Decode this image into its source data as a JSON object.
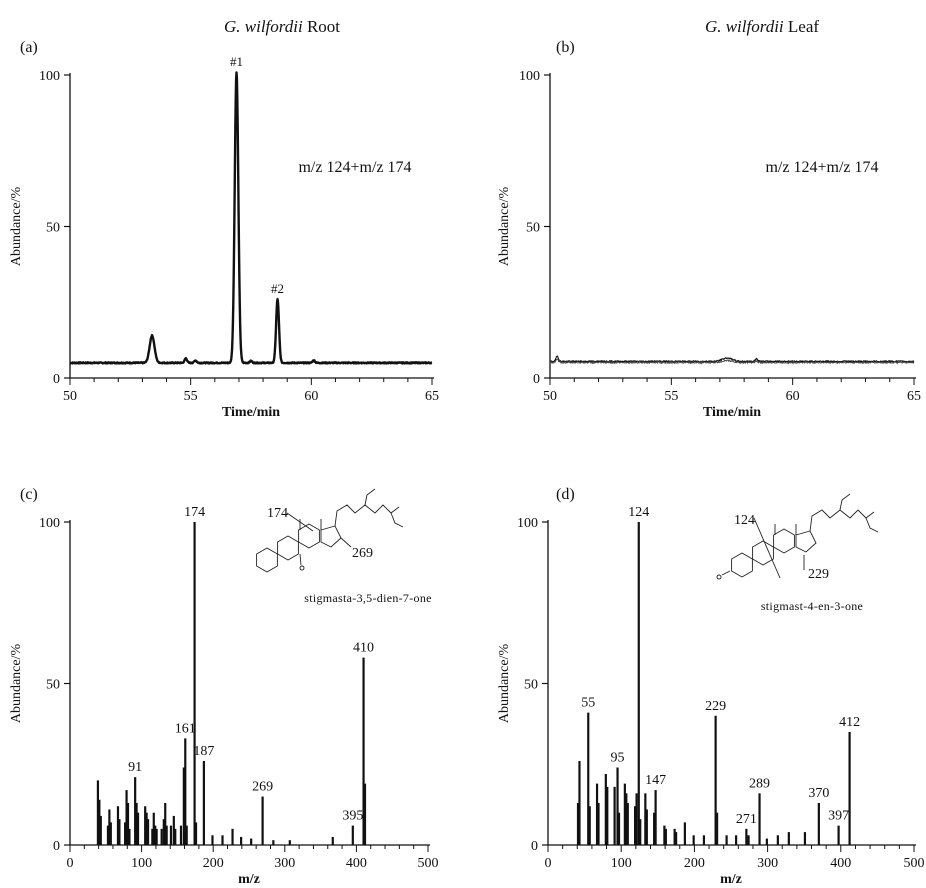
{
  "chart_data": [
    {
      "id": "a",
      "type": "line",
      "panel_label": "(a)",
      "title_italic": "G. wilfordii",
      "title_rest": " Root",
      "xlabel": "Time/min",
      "ylabel": "Abundance/%",
      "xlim": [
        50,
        65
      ],
      "ylim": [
        0,
        100
      ],
      "xticks": [
        50,
        55,
        60,
        65
      ],
      "yticks": [
        0,
        50,
        100
      ],
      "baseline": 5,
      "annotation": "m/z 124+m/z 174",
      "peaks": [
        {
          "x": 53.4,
          "y": 14,
          "w": 0.1
        },
        {
          "x": 54.8,
          "y": 6.5,
          "w": 0.05
        },
        {
          "x": 55.2,
          "y": 5.8,
          "w": 0.05
        },
        {
          "x": 56.9,
          "y": 101,
          "w": 0.075
        },
        {
          "x": 57.5,
          "y": 5.6,
          "w": 0.05
        },
        {
          "x": 58.6,
          "y": 26,
          "w": 0.06
        },
        {
          "x": 60.1,
          "y": 5.8,
          "w": 0.05
        }
      ],
      "peak_labels": [
        {
          "text": "#1",
          "x": 56.9,
          "y": 101
        },
        {
          "text": "#2",
          "x": 58.6,
          "y": 26
        }
      ],
      "series": [
        {
          "style": "bold",
          "noise": 0.35
        }
      ]
    },
    {
      "id": "b",
      "type": "line",
      "panel_label": "(b)",
      "title_italic": "G. wilfordii",
      "title_rest": " Leaf",
      "xlabel": "Time/min",
      "ylabel": "Abundance/%",
      "xlim": [
        50,
        65
      ],
      "ylim": [
        0,
        100
      ],
      "xticks": [
        50,
        55,
        60,
        65
      ],
      "yticks": [
        0,
        50,
        100
      ],
      "baseline": 5.5,
      "annotation": "m/z 124+m/z 174",
      "peaks": [
        {
          "x": 50.3,
          "y": 7.2,
          "w": 0.05
        },
        {
          "x": 57.3,
          "y": 6.6,
          "w": 0.2
        },
        {
          "x": 58.5,
          "y": 6.3,
          "w": 0.05
        }
      ],
      "peak_labels": [],
      "series": [
        {
          "style": "thin",
          "noise": 0.45
        }
      ]
    },
    {
      "id": "c",
      "type": "bar",
      "panel_label": "(c)",
      "xlabel": "m/z",
      "ylabel": "Abundance/%",
      "xlim": [
        0,
        500
      ],
      "ylim": [
        0,
        100
      ],
      "xticks": [
        0,
        100,
        200,
        300,
        400,
        500
      ],
      "yticks": [
        0,
        50,
        100
      ],
      "compound": "stigmasta-3,5-dien-7-one",
      "fragments": [
        "174",
        "269"
      ],
      "bars": [
        {
          "x": 39,
          "y": 20
        },
        {
          "x": 41,
          "y": 14
        },
        {
          "x": 43,
          "y": 9
        },
        {
          "x": 53,
          "y": 6
        },
        {
          "x": 55,
          "y": 11
        },
        {
          "x": 57,
          "y": 7
        },
        {
          "x": 67,
          "y": 12
        },
        {
          "x": 69,
          "y": 8
        },
        {
          "x": 77,
          "y": 7
        },
        {
          "x": 79,
          "y": 17
        },
        {
          "x": 81,
          "y": 13
        },
        {
          "x": 83,
          "y": 5
        },
        {
          "x": 91,
          "y": 21
        },
        {
          "x": 93,
          "y": 13
        },
        {
          "x": 95,
          "y": 10
        },
        {
          "x": 105,
          "y": 12
        },
        {
          "x": 107,
          "y": 10
        },
        {
          "x": 109,
          "y": 8
        },
        {
          "x": 115,
          "y": 5
        },
        {
          "x": 117,
          "y": 10
        },
        {
          "x": 119,
          "y": 6
        },
        {
          "x": 121,
          "y": 5
        },
        {
          "x": 128,
          "y": 5
        },
        {
          "x": 131,
          "y": 8
        },
        {
          "x": 133,
          "y": 13
        },
        {
          "x": 135,
          "y": 6
        },
        {
          "x": 141,
          "y": 6
        },
        {
          "x": 145,
          "y": 9
        },
        {
          "x": 147,
          "y": 5
        },
        {
          "x": 155,
          "y": 6
        },
        {
          "x": 159,
          "y": 24
        },
        {
          "x": 161,
          "y": 33
        },
        {
          "x": 163,
          "y": 6
        },
        {
          "x": 174,
          "y": 100
        },
        {
          "x": 176,
          "y": 7
        },
        {
          "x": 187,
          "y": 26
        },
        {
          "x": 199,
          "y": 3
        },
        {
          "x": 213,
          "y": 3
        },
        {
          "x": 227,
          "y": 5
        },
        {
          "x": 239,
          "y": 2.5
        },
        {
          "x": 253,
          "y": 2
        },
        {
          "x": 269,
          "y": 15
        },
        {
          "x": 284,
          "y": 1.5
        },
        {
          "x": 307,
          "y": 1.5
        },
        {
          "x": 367,
          "y": 2.5
        },
        {
          "x": 395,
          "y": 6
        },
        {
          "x": 410,
          "y": 58
        },
        {
          "x": 412,
          "y": 19
        }
      ],
      "bar_labels": [
        {
          "text": "91",
          "x": 91,
          "y": 21
        },
        {
          "text": "161",
          "x": 161,
          "y": 33
        },
        {
          "text": "174",
          "x": 174,
          "y": 100
        },
        {
          "text": "187",
          "x": 187,
          "y": 26
        },
        {
          "text": "269",
          "x": 269,
          "y": 15
        },
        {
          "text": "395",
          "x": 395,
          "y": 6
        },
        {
          "text": "410",
          "x": 410,
          "y": 58
        }
      ]
    },
    {
      "id": "d",
      "type": "bar",
      "panel_label": "(d)",
      "xlabel": "m/z",
      "ylabel": "Abundance/%",
      "xlim": [
        0,
        500
      ],
      "ylim": [
        0,
        100
      ],
      "xticks": [
        0,
        100,
        200,
        300,
        400,
        500
      ],
      "yticks": [
        0,
        50,
        100
      ],
      "compound": "stigmast-4-en-3-one",
      "fragments": [
        "124",
        "229"
      ],
      "bars": [
        {
          "x": 41,
          "y": 13
        },
        {
          "x": 43,
          "y": 26
        },
        {
          "x": 55,
          "y": 41
        },
        {
          "x": 57,
          "y": 12
        },
        {
          "x": 67,
          "y": 19
        },
        {
          "x": 69,
          "y": 13
        },
        {
          "x": 79,
          "y": 22
        },
        {
          "x": 81,
          "y": 18
        },
        {
          "x": 91,
          "y": 18
        },
        {
          "x": 95,
          "y": 24
        },
        {
          "x": 97,
          "y": 10
        },
        {
          "x": 105,
          "y": 19
        },
        {
          "x": 107,
          "y": 16
        },
        {
          "x": 109,
          "y": 13
        },
        {
          "x": 119,
          "y": 12
        },
        {
          "x": 121,
          "y": 16
        },
        {
          "x": 124,
          "y": 100
        },
        {
          "x": 126,
          "y": 8
        },
        {
          "x": 133,
          "y": 16
        },
        {
          "x": 135,
          "y": 11
        },
        {
          "x": 145,
          "y": 10
        },
        {
          "x": 147,
          "y": 17
        },
        {
          "x": 159,
          "y": 6
        },
        {
          "x": 161,
          "y": 5
        },
        {
          "x": 173,
          "y": 5
        },
        {
          "x": 175,
          "y": 4
        },
        {
          "x": 187,
          "y": 7
        },
        {
          "x": 199,
          "y": 3
        },
        {
          "x": 213,
          "y": 3
        },
        {
          "x": 229,
          "y": 40
        },
        {
          "x": 231,
          "y": 10
        },
        {
          "x": 244,
          "y": 3
        },
        {
          "x": 257,
          "y": 3
        },
        {
          "x": 271,
          "y": 5
        },
        {
          "x": 274,
          "y": 3
        },
        {
          "x": 289,
          "y": 16
        },
        {
          "x": 299,
          "y": 2
        },
        {
          "x": 314,
          "y": 3
        },
        {
          "x": 329,
          "y": 4
        },
        {
          "x": 351,
          "y": 4
        },
        {
          "x": 370,
          "y": 13
        },
        {
          "x": 397,
          "y": 6
        },
        {
          "x": 412,
          "y": 35
        }
      ],
      "bar_labels": [
        {
          "text": "55",
          "x": 55,
          "y": 41
        },
        {
          "text": "95",
          "x": 95,
          "y": 24
        },
        {
          "text": "124",
          "x": 124,
          "y": 100
        },
        {
          "text": "147",
          "x": 147,
          "y": 17
        },
        {
          "text": "229",
          "x": 229,
          "y": 40
        },
        {
          "text": "271",
          "x": 271,
          "y": 5
        },
        {
          "text": "289",
          "x": 289,
          "y": 16
        },
        {
          "text": "370",
          "x": 370,
          "y": 13
        },
        {
          "text": "397",
          "x": 397,
          "y": 6
        },
        {
          "text": "412",
          "x": 412,
          "y": 35
        }
      ]
    }
  ]
}
